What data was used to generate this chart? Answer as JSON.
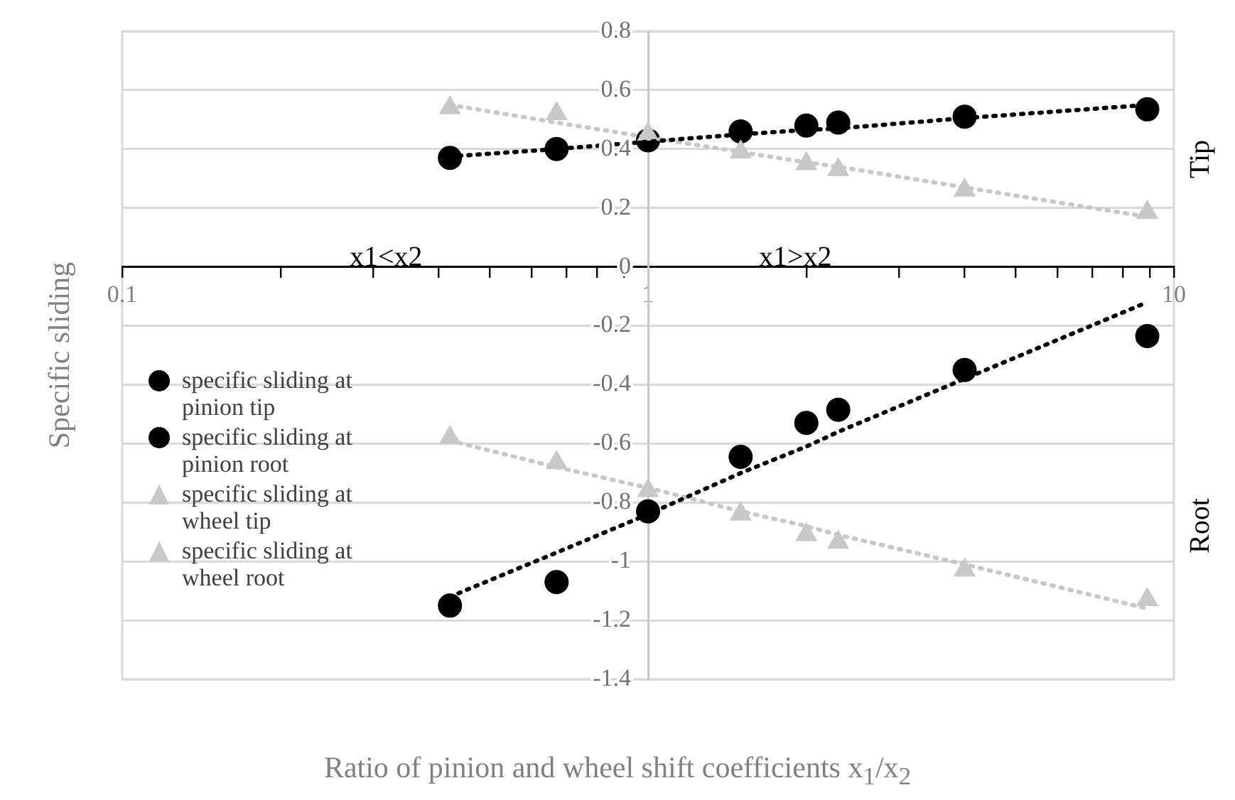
{
  "chart_data": {
    "type": "scatter",
    "xlabel": "Ratio of pinion and wheel shift coefficients x$_{1}$/x$_{2}$",
    "ylabel": "Specific sliding",
    "annotations": [
      "x1<x2",
      "x1>x2",
      "Tip",
      "Root"
    ],
    "x": [
      0.42,
      0.67,
      1,
      1.5,
      2,
      2.3,
      4,
      8.9
    ],
    "series": [
      {
        "name": "specific sliding at pinion tip",
        "color": "#000000",
        "marker": "circle",
        "values": [
          0.37,
          0.4,
          0.43,
          0.46,
          0.48,
          0.49,
          0.51,
          0.535
        ]
      },
      {
        "name": "specific sliding at pinion root",
        "color": "#000000",
        "marker": "circle",
        "values": [
          -1.15,
          -1.07,
          -0.83,
          -0.645,
          -0.53,
          -0.485,
          -0.35,
          -0.235
        ]
      },
      {
        "name": "specific sliding at wheel tip",
        "color": "#c8c8c8",
        "marker": "triangle",
        "values": [
          0.54,
          0.52,
          0.45,
          0.39,
          0.35,
          0.33,
          0.26,
          0.185
        ]
      },
      {
        "name": "specific sliding at wheel root",
        "color": "#c8c8c8",
        "marker": "triangle",
        "values": [
          -0.58,
          -0.665,
          -0.76,
          -0.84,
          -0.91,
          -0.935,
          -1.03,
          -1.13
        ]
      },
      {
        "type": "line",
        "color": "#000000",
        "marker": "none",
        "line_style": "dotted",
        "values": [
          0.375,
          0.4,
          0.425,
          0.45,
          0.465,
          0.47,
          0.505,
          0.55
        ]
      },
      {
        "type": "line",
        "color": "#000000",
        "marker": "none",
        "line_style": "dotted",
        "values": [
          -1.12,
          -0.97,
          -0.84,
          -0.7,
          -0.61,
          -0.56,
          -0.38,
          -0.12
        ]
      },
      {
        "type": "line",
        "color": "#c8c8c8",
        "marker": "none",
        "line_style": "dotted",
        "values": [
          0.55,
          0.49,
          0.44,
          0.39,
          0.355,
          0.34,
          0.27,
          0.17
        ]
      },
      {
        "type": "line",
        "color": "#c8c8c8",
        "marker": "none",
        "line_style": "dotted",
        "values": [
          -0.59,
          -0.68,
          -0.75,
          -0.83,
          -0.88,
          -0.91,
          -1.01,
          -1.16
        ]
      }
    ],
    "log": "x",
    "xlim": [
      0.1,
      10
    ],
    "ylim": [
      -1.4,
      0.8
    ],
    "xticks": [
      0.1,
      {
        "value": 0.2,
        "label": null
      },
      {
        "value": 0.3,
        "label": null
      },
      {
        "value": 0.4,
        "label": null
      },
      {
        "value": 0.5,
        "label": null
      },
      {
        "value": 0.6,
        "label": null
      },
      {
        "value": 0.7,
        "label": null
      },
      {
        "value": 0.8,
        "label": null
      },
      {
        "value": 0.9,
        "label": null
      },
      1,
      {
        "value": 2,
        "label": null
      },
      {
        "value": 3,
        "label": null
      },
      {
        "value": 4,
        "label": null
      },
      {
        "value": 5,
        "label": null
      },
      {
        "value": 6,
        "label": null
      },
      {
        "value": 7,
        "label": null
      },
      {
        "value": 8,
        "label": null
      },
      {
        "value": 9,
        "label": null
      },
      10
    ],
    "yticks": [
      -1.4,
      -1.2,
      -1,
      -0.8,
      -0.6,
      -0.4,
      -0.2,
      0,
      0.2,
      0.4,
      0.6,
      0.8
    ],
    "grid": "y",
    "legend": "left"
  }
}
